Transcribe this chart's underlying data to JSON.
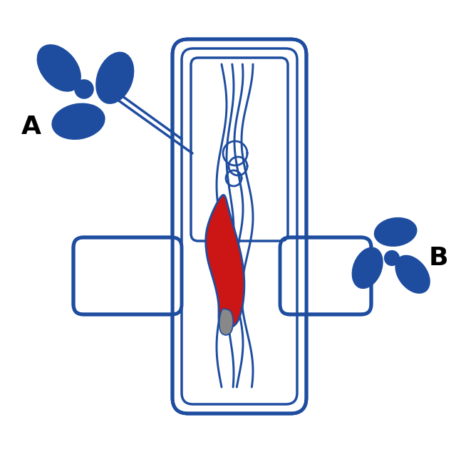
{
  "bg_color": "#ffffff",
  "blue": "#1e4da0",
  "red": "#cc1515",
  "gray": "#888888",
  "label_A": "A",
  "label_B": "B",
  "label_fontsize": 26,
  "lw": 2.5
}
